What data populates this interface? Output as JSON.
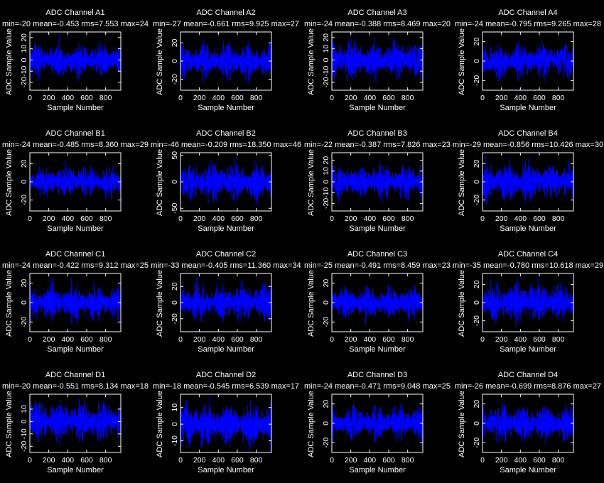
{
  "colors": {
    "background": "#000000",
    "axes": "#ffffff",
    "trace": "#0000ff",
    "text": "#ffffff"
  },
  "chart_data": [
    {
      "type": "line",
      "title": "ADC Channel A1",
      "stats": "min=-20 mean=-0.453 rms=7.553 max=24",
      "xlabel": "Sample Number",
      "ylabel": "ADC Sample Value",
      "xlim": [
        0,
        960
      ],
      "ylim": [
        -27,
        25
      ],
      "xticks": [
        0,
        200,
        400,
        600,
        800
      ],
      "yticks": [
        -20,
        -10,
        0,
        10,
        20
      ],
      "n": 960,
      "rms": 7.553,
      "min": -20,
      "max": 24
    },
    {
      "type": "line",
      "title": "ADC Channel A2",
      "stats": "min=-27 mean=-0.661 rms=9.925 max=27",
      "xlabel": "Sample Number",
      "ylabel": "ADC Sample Value",
      "xlim": [
        0,
        960
      ],
      "ylim": [
        -32,
        32
      ],
      "xticks": [
        0,
        200,
        400,
        600,
        800
      ],
      "yticks": [
        -20,
        0,
        20
      ],
      "n": 960,
      "rms": 9.925,
      "min": -27,
      "max": 27
    },
    {
      "type": "line",
      "title": "ADC Channel A3",
      "stats": "min=-24 mean=-0.388 rms=8.469 max=20",
      "xlabel": "Sample Number",
      "ylabel": "ADC Sample Value",
      "xlim": [
        0,
        960
      ],
      "ylim": [
        -27,
        25
      ],
      "xticks": [
        0,
        200,
        400,
        600,
        800
      ],
      "yticks": [
        -20,
        -10,
        0,
        10,
        20
      ],
      "n": 960,
      "rms": 8.469,
      "min": -24,
      "max": 20
    },
    {
      "type": "line",
      "title": "ADC Channel A4",
      "stats": "min=-24 mean=-0.795 rms=9.265 max=28",
      "xlabel": "Sample Number",
      "ylabel": "ADC Sample Value",
      "xlim": [
        0,
        960
      ],
      "ylim": [
        -30,
        30
      ],
      "xticks": [
        0,
        200,
        400,
        600,
        800
      ],
      "yticks": [
        -20,
        0,
        20
      ],
      "n": 960,
      "rms": 9.265,
      "min": -24,
      "max": 28
    },
    {
      "type": "line",
      "title": "ADC Channel B1",
      "stats": "min=-24 mean=-0.485 rms=8.360 max=29",
      "xlabel": "Sample Number",
      "ylabel": "ADC Sample Value",
      "xlim": [
        0,
        960
      ],
      "ylim": [
        -32,
        32
      ],
      "xticks": [
        0,
        200,
        400,
        600,
        800
      ],
      "yticks": [
        -20,
        0,
        20
      ],
      "n": 960,
      "rms": 8.36,
      "min": -24,
      "max": 29
    },
    {
      "type": "line",
      "title": "ADC Channel B2",
      "stats": "min=-46 mean=-0.209 rms=18.350 max=46",
      "xlabel": "Sample Number",
      "ylabel": "ADC Sample Value",
      "xlim": [
        0,
        960
      ],
      "ylim": [
        -55,
        55
      ],
      "xticks": [
        0,
        200,
        400,
        600,
        800
      ],
      "yticks": [
        -50,
        0,
        50
      ],
      "n": 960,
      "rms": 18.35,
      "min": -46,
      "max": 46
    },
    {
      "type": "line",
      "title": "ADC Channel B3",
      "stats": "min=-22 mean=-0.387 rms=7.826 max=23",
      "xlabel": "Sample Number",
      "ylabel": "ADC Sample Value",
      "xlim": [
        0,
        960
      ],
      "ylim": [
        -27,
        27
      ],
      "xticks": [
        0,
        200,
        400,
        600,
        800
      ],
      "yticks": [
        -20,
        -10,
        0,
        10,
        20
      ],
      "n": 960,
      "rms": 7.826,
      "min": -22,
      "max": 23
    },
    {
      "type": "line",
      "title": "ADC Channel B4",
      "stats": "min=-29 mean=-0.856 rms=10.426 max=30",
      "xlabel": "Sample Number",
      "ylabel": "ADC Sample Value",
      "xlim": [
        0,
        960
      ],
      "ylim": [
        -32,
        32
      ],
      "xticks": [
        0,
        200,
        400,
        600,
        800
      ],
      "yticks": [
        -20,
        0,
        20
      ],
      "n": 960,
      "rms": 10.426,
      "min": -29,
      "max": 30
    },
    {
      "type": "line",
      "title": "ADC Channel C1",
      "stats": "min=-24 mean=-0.422 rms=9.312 max=25",
      "xlabel": "Sample Number",
      "ylabel": "ADC Sample Value",
      "xlim": [
        0,
        960
      ],
      "ylim": [
        -30,
        30
      ],
      "xticks": [
        0,
        200,
        400,
        600,
        800
      ],
      "yticks": [
        -20,
        0,
        20
      ],
      "n": 960,
      "rms": 9.312,
      "min": -24,
      "max": 25
    },
    {
      "type": "line",
      "title": "ADC Channel C2",
      "stats": "min=-33 mean=-0.405 rms=11.360 max=34",
      "xlabel": "Sample Number",
      "ylabel": "ADC Sample Value",
      "xlim": [
        0,
        960
      ],
      "ylim": [
        -36,
        36
      ],
      "xticks": [
        0,
        200,
        400,
        600,
        800
      ],
      "yticks": [
        -20,
        0,
        20
      ],
      "n": 960,
      "rms": 11.36,
      "min": -33,
      "max": 34
    },
    {
      "type": "line",
      "title": "ADC Channel C3",
      "stats": "min=-25 mean=-0.491 rms=8.459 max=23",
      "xlabel": "Sample Number",
      "ylabel": "ADC Sample Value",
      "xlim": [
        0,
        960
      ],
      "ylim": [
        -30,
        30
      ],
      "xticks": [
        0,
        200,
        400,
        600,
        800
      ],
      "yticks": [
        -20,
        0,
        20
      ],
      "n": 960,
      "rms": 8.459,
      "min": -25,
      "max": 23
    },
    {
      "type": "line",
      "title": "ADC Channel C4",
      "stats": "min=-35 mean=-0.780 rms=10.618 max=29",
      "xlabel": "Sample Number",
      "ylabel": "ADC Sample Value",
      "xlim": [
        0,
        960
      ],
      "ylim": [
        -32,
        32
      ],
      "xticks": [
        0,
        200,
        400,
        600,
        800
      ],
      "yticks": [
        -20,
        0,
        20
      ],
      "n": 960,
      "rms": 10.618,
      "min": -35,
      "max": 29
    },
    {
      "type": "line",
      "title": "ADC Channel D1",
      "stats": "min=-20 mean=-0.551 rms=8.134 max=18",
      "xlabel": "Sample Number",
      "ylabel": "ADC Sample Value",
      "xlim": [
        0,
        960
      ],
      "ylim": [
        -25,
        22
      ],
      "xticks": [
        0,
        200,
        400,
        600,
        800
      ],
      "yticks": [
        -20,
        -10,
        0,
        10
      ],
      "n": 960,
      "rms": 8.134,
      "min": -20,
      "max": 18
    },
    {
      "type": "line",
      "title": "ADC Channel D2",
      "stats": "min=-18 mean=-0.545 rms=6.539 max=17",
      "xlabel": "Sample Number",
      "ylabel": "ADC Sample Value",
      "xlim": [
        0,
        960
      ],
      "ylim": [
        -17,
        18
      ],
      "xticks": [
        0,
        200,
        400,
        600,
        800
      ],
      "yticks": [
        -10,
        0,
        10
      ],
      "n": 960,
      "rms": 6.539,
      "min": -18,
      "max": 17
    },
    {
      "type": "line",
      "title": "ADC Channel D3",
      "stats": "min=-24 mean=-0.471 rms=9.048 max=25",
      "xlabel": "Sample Number",
      "ylabel": "ADC Sample Value",
      "xlim": [
        0,
        960
      ],
      "ylim": [
        -30,
        30
      ],
      "xticks": [
        0,
        200,
        400,
        600,
        800
      ],
      "yticks": [
        -20,
        0,
        20
      ],
      "n": 960,
      "rms": 9.048,
      "min": -24,
      "max": 25
    },
    {
      "type": "line",
      "title": "ADC Channel D4",
      "stats": "min=-26 mean=-0.699 rms=8.876 max=27",
      "xlabel": "Sample Number",
      "ylabel": "ADC Sample Value",
      "xlim": [
        0,
        960
      ],
      "ylim": [
        -30,
        30
      ],
      "xticks": [
        0,
        200,
        400,
        600,
        800
      ],
      "yticks": [
        -20,
        0,
        20
      ],
      "n": 960,
      "rms": 8.876,
      "min": -26,
      "max": 27
    }
  ]
}
